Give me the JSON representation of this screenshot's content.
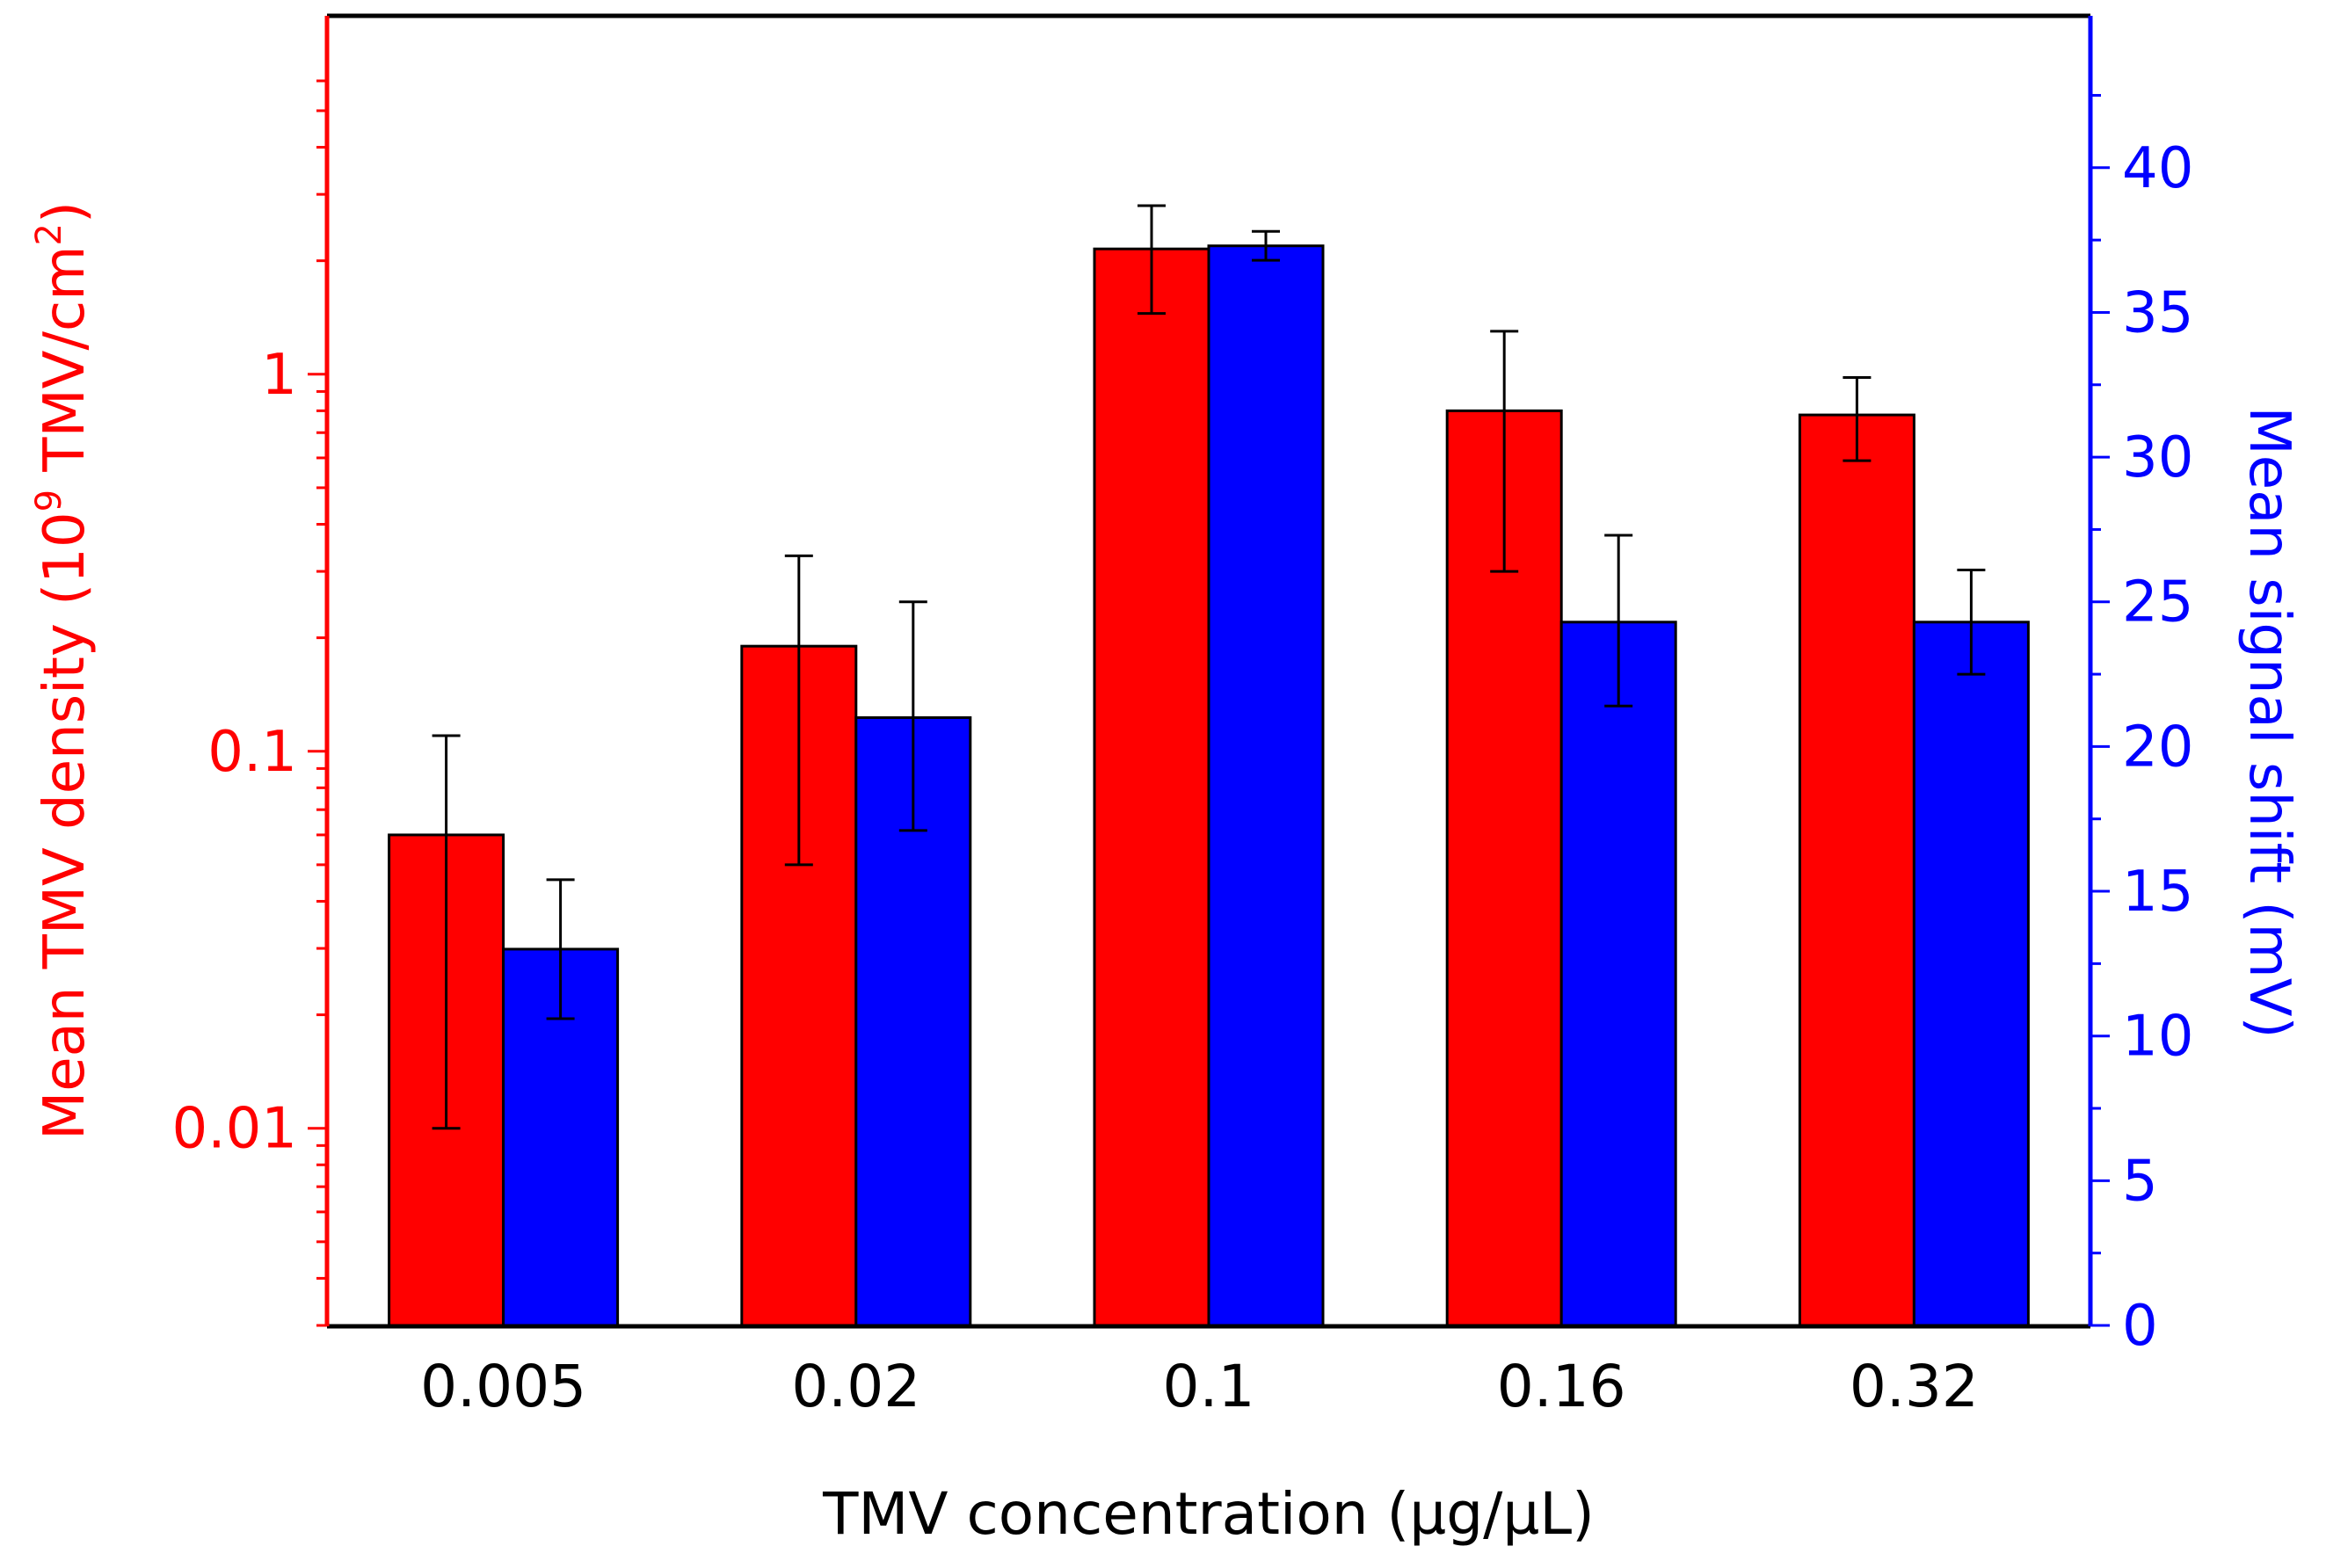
{
  "chart_data": {
    "type": "bar",
    "xlabel": "TMV concentration (µg/µL)",
    "categories": [
      "0.005",
      "0.02",
      "0.1",
      "0.16",
      "0.32"
    ],
    "left_axis": {
      "label_prefix": "Mean TMV density (10",
      "label_exp": "9",
      "label_mid": " TMV/cm",
      "label_exp2": "2",
      "label_suffix": ")",
      "scale": "log",
      "ylim": [
        0.003,
        6
      ],
      "tick_values": [
        0.01,
        0.1,
        1
      ],
      "tick_labels": [
        "0.01",
        "0.1",
        "1"
      ],
      "color": "#ff0000"
    },
    "right_axis": {
      "label": "Mean signal shift (mV)",
      "scale": "linear",
      "ylim": [
        0,
        43
      ],
      "tick_values": [
        0,
        5,
        10,
        15,
        20,
        25,
        30,
        35,
        40
      ],
      "tick_labels": [
        "0",
        "5",
        "10",
        "15",
        "20",
        "25",
        "30",
        "35",
        "40"
      ],
      "color": "#0000ff"
    },
    "series": [
      {
        "axis": "left",
        "color": "#ff0000",
        "values": [
          0.06,
          0.19,
          2.15,
          0.8,
          0.78
        ],
        "err_low": [
          0.01,
          0.05,
          1.45,
          0.3,
          0.59
        ],
        "err_high": [
          0.11,
          0.33,
          2.8,
          1.3,
          0.98
        ]
      },
      {
        "axis": "right",
        "color": "#0000ff",
        "values": [
          13.0,
          21.0,
          37.3,
          24.3,
          24.3
        ],
        "err_low": [
          10.6,
          17.1,
          36.8,
          21.4,
          22.5
        ],
        "err_high": [
          15.4,
          25.0,
          37.8,
          27.3,
          26.1
        ]
      }
    ]
  }
}
